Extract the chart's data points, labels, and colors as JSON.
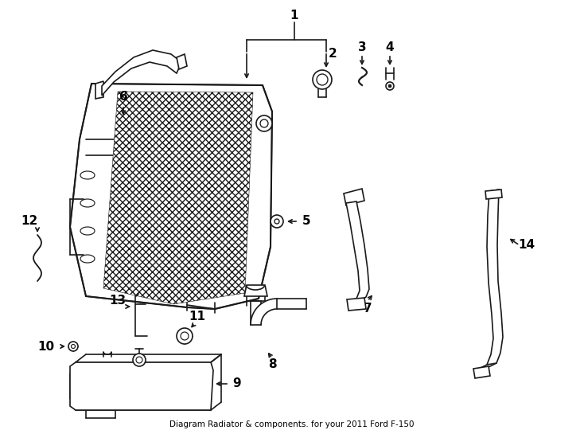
{
  "title": "Diagram Radiator & components. for your 2011 Ford F-150",
  "background_color": "#ffffff",
  "line_color": "#1a1a1a",
  "text_color": "#000000",
  "fig_width": 7.34,
  "fig_height": 5.4,
  "dpi": 100
}
